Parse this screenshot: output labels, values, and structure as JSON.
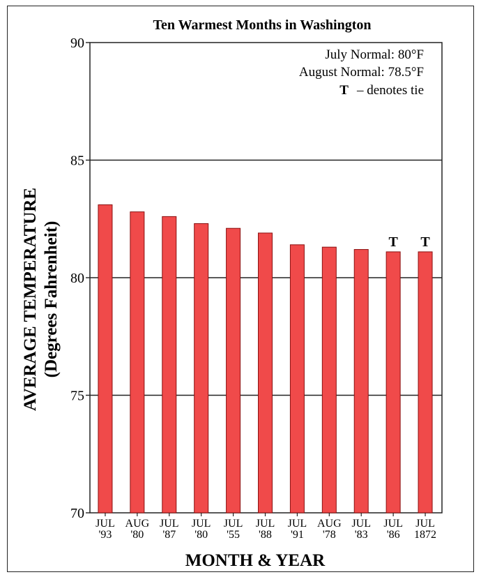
{
  "chart_data": {
    "type": "bar",
    "title": "Ten Warmest Months in Washington",
    "xlabel": "MONTH & YEAR",
    "ylabel": "AVERAGE TEMPERATURE",
    "ylabel_sub": "(Degrees Fahrenheit)",
    "ylim": [
      70,
      90
    ],
    "yticks": [
      70,
      75,
      80,
      85,
      90
    ],
    "grid_y": [
      75,
      80,
      85
    ],
    "legend": "top-right",
    "categories": [
      [
        "JUL",
        "'93"
      ],
      [
        "AUG",
        "'80"
      ],
      [
        "JUL",
        "'87"
      ],
      [
        "JUL",
        "'80"
      ],
      [
        "JUL",
        "'55"
      ],
      [
        "JUL",
        "'88"
      ],
      [
        "JUL",
        "'91"
      ],
      [
        "AUG",
        "'78"
      ],
      [
        "JUL",
        "'83"
      ],
      [
        "JUL",
        "'86"
      ],
      [
        "JUL",
        "1872"
      ]
    ],
    "values": [
      83.1,
      82.8,
      82.6,
      82.3,
      82.1,
      81.9,
      81.4,
      81.3,
      81.2,
      81.1,
      81.1
    ],
    "tie_marker": "T",
    "ties": [
      false,
      false,
      false,
      false,
      false,
      false,
      false,
      false,
      false,
      true,
      true
    ],
    "notes": [
      "July Normal: 80°F",
      "August Normal: 78.5°F"
    ],
    "tie_note_symbol": "T",
    "tie_note_text": "– denotes tie",
    "bar_color": "#f04a4a",
    "bar_edge_color": "#8a1010"
  }
}
